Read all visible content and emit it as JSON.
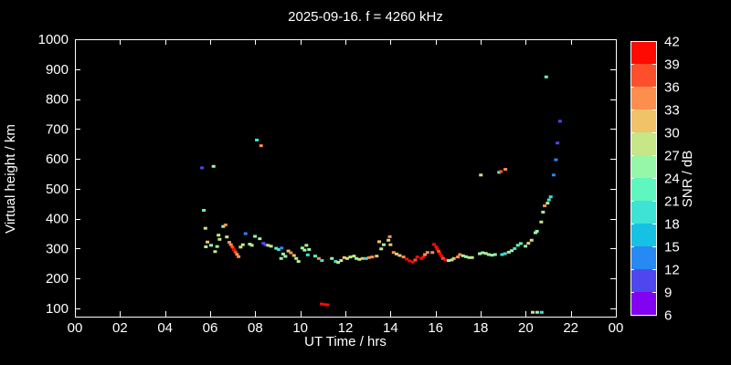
{
  "colors": {
    "background": "#000000",
    "axis": "#ffffff",
    "text": "#ffffff"
  },
  "chart_data": {
    "type": "scatter",
    "title": "2025-09-16. f = 4260 kHz",
    "xlabel": "UT Time / hrs",
    "ylabel": "Virtual height / km",
    "x_range_hours": [
      0,
      24
    ],
    "x_tick_step_hours": 2,
    "x_tick_labels": [
      "00",
      "02",
      "04",
      "06",
      "08",
      "10",
      "12",
      "14",
      "16",
      "18",
      "20",
      "22",
      "00"
    ],
    "y_range_km": [
      100,
      1000
    ],
    "y_tick_values": [
      100,
      200,
      300,
      400,
      500,
      600,
      700,
      800,
      900,
      1000
    ],
    "grid": "off",
    "colorbar": {
      "label": "SNR / dB",
      "min": 6,
      "max": 42,
      "step": 3,
      "tick_values": [
        6,
        9,
        12,
        15,
        18,
        21,
        24,
        27,
        30,
        33,
        36,
        39,
        42
      ],
      "segment_colors_low_to_high": [
        "#8202f2",
        "#4f46f0",
        "#2789f2",
        "#16c2e4",
        "#3ee3d5",
        "#5ff7c0",
        "#97f7a9",
        "#c6e687",
        "#f0c369",
        "#fd8f4e",
        "#fd4f2c",
        "#fe0a02"
      ]
    },
    "points_time_height_snr": [
      [
        5.64,
        570,
        10
      ],
      [
        5.72,
        428,
        22
      ],
      [
        5.79,
        368,
        28
      ],
      [
        5.81,
        306,
        28
      ],
      [
        5.88,
        322,
        31
      ],
      [
        6.04,
        311,
        25
      ],
      [
        6.15,
        575,
        25
      ],
      [
        6.22,
        290,
        28
      ],
      [
        6.31,
        307,
        25
      ],
      [
        6.37,
        345,
        28
      ],
      [
        6.42,
        331,
        28
      ],
      [
        6.58,
        374,
        25
      ],
      [
        6.68,
        379,
        34
      ],
      [
        6.74,
        339,
        28
      ],
      [
        6.85,
        321,
        34
      ],
      [
        6.92,
        313,
        34
      ],
      [
        6.99,
        305,
        37
      ],
      [
        7.05,
        297,
        40
      ],
      [
        7.12,
        289,
        37
      ],
      [
        7.19,
        281,
        34
      ],
      [
        7.26,
        273,
        34
      ],
      [
        7.35,
        305,
        28
      ],
      [
        7.45,
        313,
        28
      ],
      [
        7.57,
        350,
        13
      ],
      [
        7.76,
        315,
        25
      ],
      [
        7.85,
        311,
        28
      ],
      [
        7.99,
        341,
        25
      ],
      [
        8.07,
        663,
        19
      ],
      [
        8.2,
        333,
        25
      ],
      [
        8.26,
        644,
        34
      ],
      [
        8.36,
        318,
        10
      ],
      [
        8.45,
        313,
        10
      ],
      [
        8.57,
        311,
        28
      ],
      [
        8.7,
        308,
        28
      ],
      [
        8.93,
        301,
        22
      ],
      [
        9.04,
        297,
        19
      ],
      [
        9.15,
        267,
        25
      ],
      [
        9.17,
        302,
        13
      ],
      [
        9.24,
        282,
        25
      ],
      [
        9.34,
        274,
        25
      ],
      [
        9.47,
        292,
        31
      ],
      [
        9.58,
        286,
        34
      ],
      [
        9.72,
        277,
        31
      ],
      [
        9.82,
        267,
        25
      ],
      [
        9.92,
        257,
        28
      ],
      [
        10.09,
        302,
        25
      ],
      [
        10.19,
        295,
        25
      ],
      [
        10.27,
        311,
        28
      ],
      [
        10.33,
        279,
        19
      ],
      [
        10.39,
        297,
        25
      ],
      [
        10.66,
        275,
        22
      ],
      [
        10.82,
        267,
        34
      ],
      [
        10.95,
        115,
        40
      ],
      [
        10.96,
        260,
        19
      ],
      [
        11.09,
        113,
        40
      ],
      [
        11.21,
        112,
        40
      ],
      [
        11.4,
        267,
        25
      ],
      [
        11.57,
        257,
        19
      ],
      [
        11.68,
        254,
        28
      ],
      [
        11.81,
        260,
        28
      ],
      [
        11.95,
        270,
        31
      ],
      [
        12.08,
        267,
        28
      ],
      [
        12.22,
        272,
        28
      ],
      [
        12.38,
        275,
        28
      ],
      [
        12.49,
        267,
        25
      ],
      [
        12.62,
        264,
        28
      ],
      [
        12.76,
        267,
        31
      ],
      [
        12.92,
        267,
        19
      ],
      [
        13.05,
        270,
        34
      ],
      [
        13.19,
        272,
        34
      ],
      [
        13.39,
        275,
        31
      ],
      [
        13.5,
        323,
        31
      ],
      [
        13.59,
        299,
        28
      ],
      [
        13.7,
        313,
        25
      ],
      [
        13.91,
        328,
        28
      ],
      [
        13.97,
        340,
        34
      ],
      [
        14.0,
        313,
        31
      ],
      [
        14.14,
        287,
        34
      ],
      [
        14.27,
        282,
        31
      ],
      [
        14.41,
        277,
        31
      ],
      [
        14.58,
        272,
        34
      ],
      [
        14.72,
        265,
        40
      ],
      [
        14.85,
        259,
        40
      ],
      [
        14.99,
        255,
        40
      ],
      [
        15.1,
        262,
        37
      ],
      [
        15.19,
        272,
        40
      ],
      [
        15.37,
        267,
        40
      ],
      [
        15.46,
        272,
        40
      ],
      [
        15.53,
        280,
        34
      ],
      [
        15.64,
        287,
        34
      ],
      [
        15.86,
        287,
        34
      ],
      [
        15.93,
        314,
        40
      ],
      [
        16.03,
        306,
        40
      ],
      [
        16.07,
        299,
        40
      ],
      [
        16.14,
        291,
        37
      ],
      [
        16.2,
        283,
        40
      ],
      [
        16.27,
        275,
        40
      ],
      [
        16.34,
        267,
        37
      ],
      [
        16.45,
        262,
        40
      ],
      [
        16.58,
        260,
        25
      ],
      [
        16.72,
        262,
        28
      ],
      [
        16.81,
        267,
        31
      ],
      [
        16.99,
        272,
        34
      ],
      [
        17.08,
        280,
        34
      ],
      [
        17.22,
        276,
        28
      ],
      [
        17.35,
        273,
        25
      ],
      [
        17.49,
        270,
        28
      ],
      [
        17.62,
        270,
        28
      ],
      [
        17.96,
        283,
        25
      ],
      [
        18.01,
        546,
        28
      ],
      [
        18.09,
        286,
        25
      ],
      [
        18.23,
        284,
        28
      ],
      [
        18.36,
        280,
        25
      ],
      [
        18.5,
        278,
        25
      ],
      [
        18.64,
        280,
        25
      ],
      [
        18.82,
        555,
        22
      ],
      [
        18.9,
        558,
        37
      ],
      [
        18.95,
        280,
        19
      ],
      [
        19.08,
        283,
        19
      ],
      [
        19.1,
        565,
        34
      ],
      [
        19.25,
        288,
        28
      ],
      [
        19.38,
        293,
        25
      ],
      [
        19.51,
        300,
        19
      ],
      [
        19.65,
        311,
        22
      ],
      [
        19.78,
        317,
        22
      ],
      [
        19.99,
        308,
        25
      ],
      [
        20.12,
        318,
        31
      ],
      [
        20.26,
        328,
        28
      ],
      [
        20.31,
        87,
        28
      ],
      [
        20.43,
        353,
        25
      ],
      [
        20.5,
        358,
        25
      ],
      [
        20.51,
        87,
        25
      ],
      [
        20.69,
        389,
        28
      ],
      [
        20.71,
        87,
        19
      ],
      [
        20.77,
        422,
        25
      ],
      [
        20.84,
        443,
        34
      ],
      [
        20.91,
        874,
        22
      ],
      [
        20.97,
        452,
        28
      ],
      [
        21.03,
        463,
        19
      ],
      [
        21.11,
        473,
        19
      ],
      [
        21.24,
        546,
        13
      ],
      [
        21.34,
        597,
        13
      ],
      [
        21.41,
        653,
        10
      ],
      [
        21.52,
        726,
        10
      ]
    ]
  }
}
